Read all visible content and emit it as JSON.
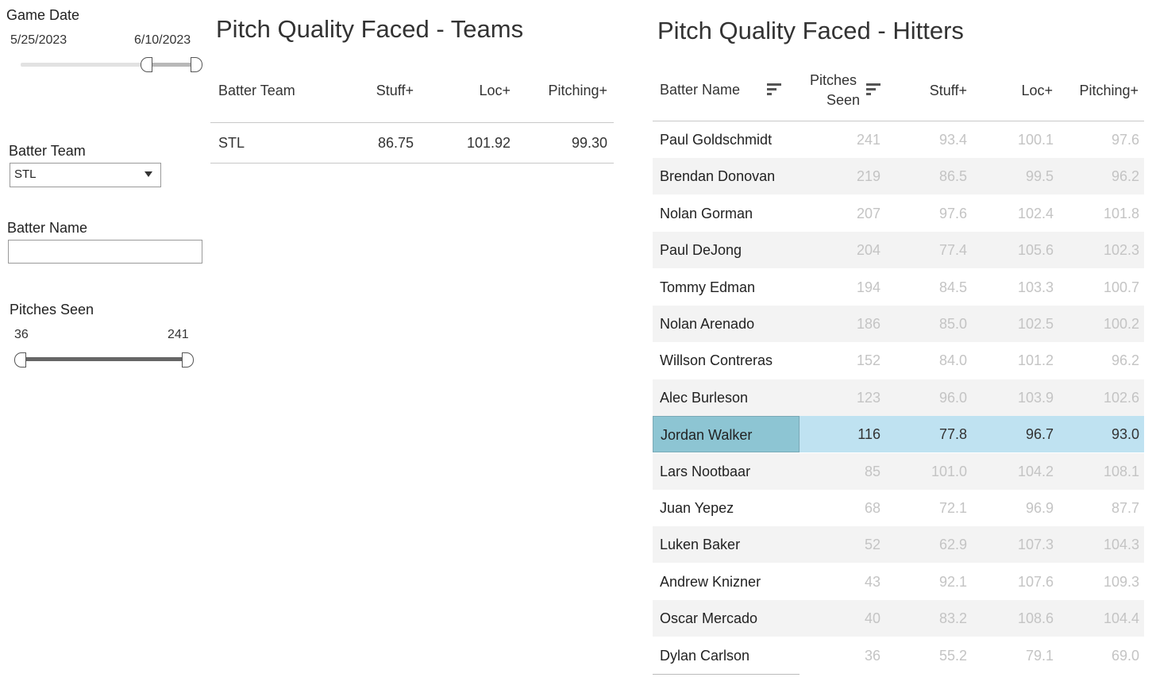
{
  "filters": {
    "game_date": {
      "title": "Game Date",
      "start": "5/25/2023",
      "end": "6/10/2023"
    },
    "batter_team": {
      "title": "Batter Team",
      "selected": "STL"
    },
    "batter_name": {
      "title": "Batter Name",
      "value": ""
    },
    "pitches_seen": {
      "title": "Pitches Seen",
      "min": "36",
      "max": "241"
    }
  },
  "teams_table": {
    "title": "Pitch Quality Faced - Teams",
    "headers": [
      "Batter Team",
      "Stuff+",
      "Loc+",
      "Pitching+"
    ],
    "rows": [
      {
        "team": "STL",
        "stuff": "86.75",
        "loc": "101.92",
        "pitching": "99.30"
      }
    ]
  },
  "hitters_table": {
    "title": "Pitch Quality Faced - Hitters",
    "headers": {
      "name": "Batter Name",
      "pitches_line1": "Pitches",
      "pitches_line2": "Seen",
      "stuff": "Stuff+",
      "loc": "Loc+",
      "pitching": "Pitching+"
    },
    "selected_row": "Jordan Walker",
    "rows": [
      {
        "name": "Paul Goldschmidt",
        "pitches": "241",
        "stuff": "93.4",
        "loc": "100.1",
        "pitching": "97.6"
      },
      {
        "name": "Brendan Donovan",
        "pitches": "219",
        "stuff": "86.5",
        "loc": "99.5",
        "pitching": "96.2"
      },
      {
        "name": "Nolan Gorman",
        "pitches": "207",
        "stuff": "97.6",
        "loc": "102.4",
        "pitching": "101.8"
      },
      {
        "name": "Paul DeJong",
        "pitches": "204",
        "stuff": "77.4",
        "loc": "105.6",
        "pitching": "102.3"
      },
      {
        "name": "Tommy Edman",
        "pitches": "194",
        "stuff": "84.5",
        "loc": "103.3",
        "pitching": "100.7"
      },
      {
        "name": "Nolan Arenado",
        "pitches": "186",
        "stuff": "85.0",
        "loc": "102.5",
        "pitching": "100.2"
      },
      {
        "name": "Willson Contreras",
        "pitches": "152",
        "stuff": "84.0",
        "loc": "101.2",
        "pitching": "96.2"
      },
      {
        "name": "Alec Burleson",
        "pitches": "123",
        "stuff": "96.0",
        "loc": "103.9",
        "pitching": "102.6"
      },
      {
        "name": "Jordan Walker",
        "pitches": "116",
        "stuff": "77.8",
        "loc": "96.7",
        "pitching": "93.0"
      },
      {
        "name": "Lars Nootbaar",
        "pitches": "85",
        "stuff": "101.0",
        "loc": "104.2",
        "pitching": "108.1"
      },
      {
        "name": "Juan Yepez",
        "pitches": "68",
        "stuff": "72.1",
        "loc": "96.9",
        "pitching": "87.7"
      },
      {
        "name": "Luken Baker",
        "pitches": "52",
        "stuff": "62.9",
        "loc": "107.3",
        "pitching": "104.3"
      },
      {
        "name": "Andrew Knizner",
        "pitches": "43",
        "stuff": "92.1",
        "loc": "107.6",
        "pitching": "109.3"
      },
      {
        "name": "Oscar Mercado",
        "pitches": "40",
        "stuff": "83.2",
        "loc": "108.6",
        "pitching": "104.4"
      },
      {
        "name": "Dylan Carlson",
        "pitches": "36",
        "stuff": "55.2",
        "loc": "79.1",
        "pitching": "69.0"
      }
    ]
  },
  "colors": {
    "selected_row": "#bfe2f1",
    "selected_cell": "#8dc5d3",
    "alt_row": "#f3f3f3",
    "muted_number": "#c4c4c4"
  }
}
